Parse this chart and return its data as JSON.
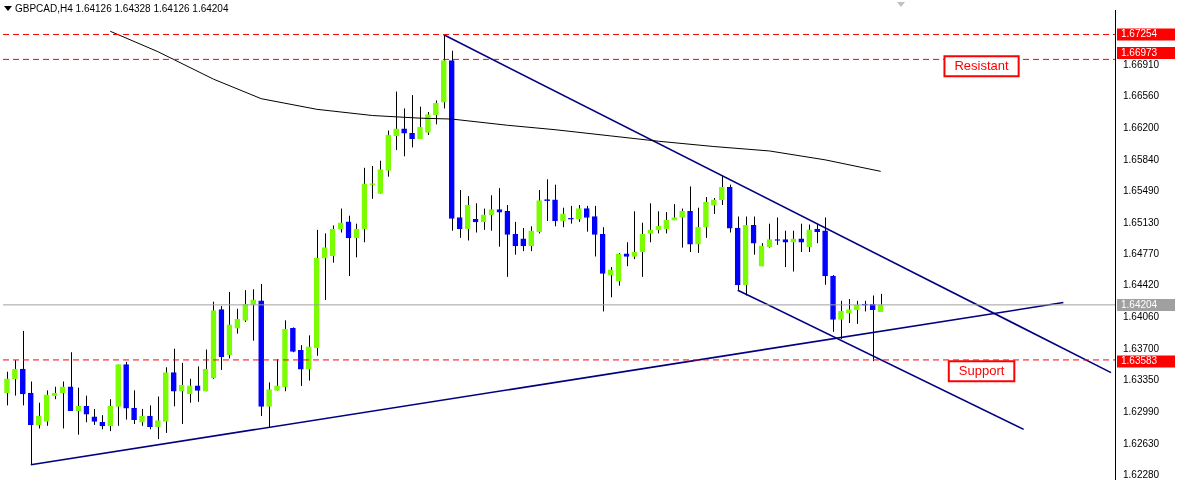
{
  "chart_data": {
    "type": "candlestick",
    "title": "GBPCAD,H4  1.64126 1.64328 1.64126 1.64204",
    "categories": [
      null,
      null,
      null,
      null,
      null,
      null,
      null,
      null,
      null,
      null,
      null,
      null,
      null,
      null,
      null,
      null,
      null,
      null,
      null,
      null,
      null,
      null,
      null,
      null,
      null,
      null,
      null,
      null,
      null,
      null,
      null,
      null,
      null,
      null,
      null,
      null,
      null,
      null,
      null,
      null,
      null,
      null,
      null,
      null,
      null,
      null,
      null,
      null,
      null,
      null,
      null,
      null,
      null,
      null,
      null,
      null,
      null,
      null,
      null,
      null,
      null,
      null,
      null,
      null,
      null,
      null,
      null,
      null,
      null,
      null,
      null,
      null,
      null,
      null,
      null,
      null,
      null,
      null,
      null,
      null,
      null,
      null,
      null,
      null,
      null,
      null,
      null,
      null,
      null,
      null,
      null,
      null,
      null,
      null,
      null,
      null,
      null,
      null,
      null,
      null,
      null,
      null,
      null,
      null,
      null,
      null,
      null,
      null,
      null,
      null,
      null,
      null,
      null,
      null,
      null,
      null,
      null,
      null,
      null,
      null,
      null,
      null,
      null,
      null,
      null,
      null,
      null,
      null,
      null,
      null,
      null,
      null,
      null,
      null,
      null,
      null,
      null,
      null,
      null,
      null
    ],
    "ohlc": [
      [
        1.6321,
        1.6345,
        1.6307,
        1.6337
      ],
      [
        1.6337,
        1.6358,
        1.6318,
        1.6348
      ],
      [
        1.6348,
        1.6391,
        1.6307,
        1.632
      ],
      [
        1.6321,
        1.6334,
        1.624,
        1.6285
      ],
      [
        1.6285,
        1.631,
        1.6281,
        1.6295
      ],
      [
        1.6289,
        1.6324,
        1.6284,
        1.6319
      ],
      [
        1.6318,
        1.6328,
        1.6314,
        1.6321
      ],
      [
        1.6321,
        1.6334,
        1.6281,
        1.6328
      ],
      [
        1.6328,
        1.6367,
        1.6301,
        1.6301
      ],
      [
        1.6301,
        1.6327,
        1.6274,
        1.6306
      ],
      [
        1.6306,
        1.6318,
        1.6288,
        1.6297
      ],
      [
        1.6294,
        1.6303,
        1.6285,
        1.6289
      ],
      [
        1.6288,
        1.6296,
        1.628,
        1.6284
      ],
      [
        1.6284,
        1.6314,
        1.6278,
        1.6306
      ],
      [
        1.6306,
        1.6353,
        1.6284,
        1.6353
      ],
      [
        1.6353,
        1.6356,
        1.6291,
        1.6304
      ],
      [
        1.6304,
        1.6324,
        1.6286,
        1.6291
      ],
      [
        1.6288,
        1.6303,
        1.6284,
        1.6295
      ],
      [
        1.6295,
        1.6307,
        1.628,
        1.6283
      ],
      [
        1.6283,
        1.6317,
        1.6269,
        1.629
      ],
      [
        1.6289,
        1.635,
        1.6276,
        1.6344
      ],
      [
        1.6344,
        1.6371,
        1.6306,
        1.6323
      ],
      [
        1.6323,
        1.6355,
        1.6286,
        1.633
      ],
      [
        1.632,
        1.6337,
        1.631,
        1.6329
      ],
      [
        1.6329,
        1.6351,
        1.6311,
        1.6324
      ],
      [
        1.6323,
        1.637,
        1.6323,
        1.6348
      ],
      [
        1.6338,
        1.6424,
        1.6337,
        1.6414
      ],
      [
        1.6415,
        1.6419,
        1.6347,
        1.6362
      ],
      [
        1.6364,
        1.6435,
        1.636,
        1.6398
      ],
      [
        1.6394,
        1.6416,
        1.6388,
        1.6404
      ],
      [
        1.6403,
        1.6437,
        1.6401,
        1.6421
      ],
      [
        1.6421,
        1.6438,
        1.638,
        1.6426
      ],
      [
        1.6425,
        1.6444,
        1.6295,
        1.6306
      ],
      [
        1.6306,
        1.6333,
        1.6282,
        1.6325
      ],
      [
        1.6324,
        1.6359,
        1.6324,
        1.6329
      ],
      [
        1.6328,
        1.6403,
        1.6323,
        1.6393
      ],
      [
        1.6394,
        1.6395,
        1.6367,
        1.6368
      ],
      [
        1.6369,
        1.6375,
        1.6329,
        1.6348
      ],
      [
        1.6348,
        1.6386,
        1.6335,
        1.6373
      ],
      [
        1.6372,
        1.6505,
        1.6363,
        1.6473
      ],
      [
        1.6473,
        1.6501,
        1.6426,
        1.6485
      ],
      [
        1.6476,
        1.651,
        1.6468,
        1.6506
      ],
      [
        1.6506,
        1.6529,
        1.6502,
        1.6513
      ],
      [
        1.6514,
        1.6521,
        1.6453,
        1.6496
      ],
      [
        1.6496,
        1.6512,
        1.6474,
        1.6506
      ],
      [
        1.6506,
        1.6575,
        1.6491,
        1.6557
      ],
      [
        1.6556,
        1.6577,
        1.654,
        1.6557
      ],
      [
        1.6546,
        1.6583,
        1.6546,
        1.6573
      ],
      [
        1.6572,
        1.6617,
        1.6565,
        1.6612
      ],
      [
        1.6611,
        1.6661,
        1.6595,
        1.6619
      ],
      [
        1.6619,
        1.6642,
        1.6588,
        1.6614
      ],
      [
        1.6614,
        1.6657,
        1.6598,
        1.6608
      ],
      [
        1.6608,
        1.6644,
        1.6608,
        1.6621
      ],
      [
        1.6615,
        1.6638,
        1.6612,
        1.6635
      ],
      [
        1.6635,
        1.6651,
        1.6624,
        1.6648
      ],
      [
        1.6649,
        1.6725,
        1.6642,
        1.6696
      ],
      [
        1.6696,
        1.6707,
        1.6504,
        1.6518
      ],
      [
        1.6519,
        1.655,
        1.6496,
        1.6506
      ],
      [
        1.6506,
        1.6543,
        1.6493,
        1.6533
      ],
      [
        1.6517,
        1.6535,
        1.6502,
        1.6514
      ],
      [
        1.6514,
        1.6529,
        1.6505,
        1.6522
      ],
      [
        1.6522,
        1.6544,
        1.6504,
        1.6528
      ],
      [
        1.6528,
        1.6552,
        1.6486,
        1.6525
      ],
      [
        1.6526,
        1.6533,
        1.6452,
        1.65
      ],
      [
        1.65,
        1.6514,
        1.6477,
        1.6487
      ],
      [
        1.6495,
        1.6507,
        1.6481,
        1.6487
      ],
      [
        1.6487,
        1.6509,
        1.6481,
        1.6504
      ],
      [
        1.6503,
        1.655,
        1.6501,
        1.6538
      ],
      [
        1.6538,
        1.6562,
        1.6515,
        1.6538
      ],
      [
        1.6539,
        1.6556,
        1.6509,
        1.6515
      ],
      [
        1.6515,
        1.653,
        1.6508,
        1.6523
      ],
      [
        1.6518,
        1.6532,
        1.6512,
        1.6517
      ],
      [
        1.6517,
        1.6533,
        1.6514,
        1.6529
      ],
      [
        1.6529,
        1.6532,
        1.6503,
        1.6519
      ],
      [
        1.652,
        1.6532,
        1.6475,
        1.65
      ],
      [
        1.65,
        1.6508,
        1.6413,
        1.6456
      ],
      [
        1.6454,
        1.6463,
        1.6429,
        1.646
      ],
      [
        1.6447,
        1.6479,
        1.6442,
        1.6478
      ],
      [
        1.6478,
        1.6491,
        1.6464,
        1.6475
      ],
      [
        1.6475,
        1.6526,
        1.6472,
        1.648
      ],
      [
        1.648,
        1.6513,
        1.6452,
        1.65
      ],
      [
        1.6501,
        1.6535,
        1.6491,
        1.6505
      ],
      [
        1.6505,
        1.6526,
        1.6501,
        1.6509
      ],
      [
        1.6506,
        1.6525,
        1.6501,
        1.6516
      ],
      [
        1.6516,
        1.6534,
        1.6516,
        1.6519
      ],
      [
        1.6519,
        1.6529,
        1.6485,
        1.6526
      ],
      [
        1.6526,
        1.6554,
        1.648,
        1.6489
      ],
      [
        1.6489,
        1.653,
        1.6479,
        1.6508
      ],
      [
        1.6508,
        1.6542,
        1.6496,
        1.6536
      ],
      [
        1.6533,
        1.6541,
        1.6523,
        1.6539
      ],
      [
        1.6539,
        1.6566,
        1.6533,
        1.6553
      ],
      [
        1.6553,
        1.6556,
        1.6502,
        1.6507
      ],
      [
        1.6507,
        1.652,
        1.6436,
        1.6443
      ],
      [
        1.6443,
        1.652,
        1.6431,
        1.651
      ],
      [
        1.651,
        1.652,
        1.6477,
        1.649
      ],
      [
        1.6464,
        1.649,
        1.6464,
        1.6487
      ],
      [
        1.6486,
        1.6512,
        1.6485,
        1.6494
      ],
      [
        1.6493,
        1.6519,
        1.6488,
        1.6493
      ],
      [
        1.6494,
        1.6504,
        1.6463,
        1.6491
      ],
      [
        1.6491,
        1.6504,
        1.6458,
        1.6495
      ],
      [
        1.6495,
        1.6512,
        1.648,
        1.6491
      ],
      [
        1.6486,
        1.6511,
        1.648,
        1.6505
      ],
      [
        1.6506,
        1.6512,
        1.649,
        1.6503
      ],
      [
        1.6504,
        1.6519,
        1.6443,
        1.6453
      ],
      [
        1.6453,
        1.6454,
        1.639,
        1.6404
      ],
      [
        1.6404,
        1.6425,
        1.6382,
        1.6413
      ],
      [
        1.6411,
        1.6427,
        1.64,
        1.6415
      ],
      [
        1.6415,
        1.6425,
        1.6399,
        1.642
      ],
      [
        1.642,
        1.6425,
        1.6413,
        1.642
      ],
      [
        1.6421,
        1.6431,
        1.6357,
        1.6415
      ],
      [
        1.64126,
        1.64328,
        1.64126,
        1.64204
      ],
      null,
      null,
      null,
      null,
      null,
      null,
      null,
      null,
      null,
      null,
      null,
      null,
      null,
      null,
      null,
      null,
      null,
      null,
      null,
      null,
      null,
      null,
      null,
      null,
      null,
      null,
      null,
      null,
      null
    ],
    "colors": [
      "#7cfc00",
      "#7cfc00",
      "#0000ff",
      "#0000ff",
      "#7cfc00",
      "#7cfc00",
      "#7cfc00",
      "#7cfc00",
      "#0000ff",
      "#7cfc00",
      "#0000ff",
      "#0000ff",
      "#0000ff",
      "#7cfc00",
      "#7cfc00",
      "#0000ff",
      "#0000ff",
      "#7cfc00",
      "#0000ff",
      "#7cfc00",
      "#7cfc00",
      "#0000ff",
      "#7cfc00",
      "#7cfc00",
      "#0000ff",
      "#7cfc00",
      "#7cfc00",
      "#0000ff",
      "#7cfc00",
      "#7cfc00",
      "#7cfc00",
      "#7cfc00",
      "#0000ff",
      "#7cfc00",
      "#7cfc00",
      "#7cfc00",
      "#0000ff",
      "#0000ff",
      "#7cfc00",
      "#7cfc00",
      "#7cfc00",
      "#7cfc00",
      "#7cfc00",
      "#0000ff",
      "#7cfc00",
      "#7cfc00",
      "#7cfc00",
      "#7cfc00",
      "#7cfc00",
      "#7cfc00",
      "#0000ff",
      "#0000ff",
      "#7cfc00",
      "#7cfc00",
      "#7cfc00",
      "#7cfc00",
      "#0000ff",
      "#0000ff",
      "#7cfc00",
      "#0000ff",
      "#7cfc00",
      "#7cfc00",
      "#0000ff",
      "#0000ff",
      "#0000ff",
      "#0000ff",
      "#7cfc00",
      "#7cfc00",
      "#0000ff",
      "#0000ff",
      "#7cfc00",
      "#0000ff",
      "#7cfc00",
      "#0000ff",
      "#0000ff",
      "#0000ff",
      "#7cfc00",
      "#7cfc00",
      "#0000ff",
      "#7cfc00",
      "#7cfc00",
      "#7cfc00",
      "#7cfc00",
      "#7cfc00",
      "#7cfc00",
      "#7cfc00",
      "#0000ff",
      "#7cfc00",
      "#7cfc00",
      "#7cfc00",
      "#7cfc00",
      "#0000ff",
      "#0000ff",
      "#7cfc00",
      "#0000ff",
      "#7cfc00",
      "#7cfc00",
      "#0000ff",
      "#0000ff",
      "#7cfc00",
      "#0000ff",
      "#7cfc00",
      "#0000ff",
      "#0000ff",
      "#0000ff",
      "#7cfc00",
      "#7cfc00",
      "#7cfc00",
      "#0000ff",
      "#0000ff",
      "#7cfc00",
      null,
      null,
      null,
      null,
      null,
      null,
      null,
      null,
      null,
      null,
      null,
      null,
      null,
      null,
      null,
      null,
      null,
      null,
      null,
      null,
      null,
      null,
      null,
      null,
      null,
      null,
      null,
      null,
      null
    ],
    "series": [
      {
        "type": "line",
        "color": "#000000",
        "values": [
          null,
          null,
          null,
          null,
          null,
          null,
          null,
          null,
          null,
          null,
          null,
          null,
          null,
          1.6729,
          null,
          null,
          null,
          null,
          null,
          1.6706,
          null,
          null,
          null,
          null,
          null,
          null,
          1.6675,
          null,
          null,
          null,
          null,
          null,
          1.6653,
          null,
          null,
          null,
          null,
          null,
          null,
          1.6641,
          null,
          null,
          null,
          null,
          null,
          null,
          1.6634,
          null,
          null,
          null,
          null,
          null,
          1.6631,
          null,
          null,
          null,
          1.663,
          null,
          null,
          null,
          null,
          null,
          null,
          1.6623,
          null,
          null,
          null,
          null,
          null,
          1.6618,
          null,
          null,
          null,
          null,
          null,
          null,
          1.6611,
          null,
          null,
          null,
          null,
          null,
          1.6605,
          null,
          null,
          null,
          null,
          null,
          null,
          1.6599,
          null,
          null,
          null,
          null,
          null,
          null,
          1.6594,
          null,
          null,
          null,
          null,
          null,
          null,
          1.6584,
          null,
          null,
          null,
          null,
          null,
          null,
          1.6571,
          null,
          null,
          null,
          null,
          null,
          null,
          null,
          null,
          null,
          null,
          null,
          null,
          null,
          null,
          null,
          null,
          null,
          null,
          null,
          null,
          null,
          null,
          null,
          null,
          null,
          null,
          null,
          null,
          null
        ]
      },
      {
        "type": "line",
        "color": "#000080",
        "values": [
          null,
          null,
          null,
          1.624,
          null,
          null,
          null,
          null,
          null,
          null,
          null,
          null,
          null,
          null,
          null,
          null,
          null,
          null,
          null,
          null,
          null,
          null,
          null,
          null,
          null,
          null,
          null,
          null,
          null,
          null,
          null,
          null,
          null,
          null,
          null,
          null,
          null,
          null,
          null,
          null,
          null,
          null,
          null,
          null,
          null,
          null,
          null,
          null,
          null,
          null,
          null,
          null,
          null,
          null,
          null,
          null,
          null,
          null,
          null,
          null,
          null,
          null,
          null,
          null,
          null,
          null,
          null,
          null,
          null,
          null,
          null,
          null,
          null,
          null,
          null,
          null,
          null,
          null,
          null,
          null,
          null,
          null,
          null,
          null,
          null,
          null,
          null,
          null,
          null,
          null,
          null,
          null,
          null,
          null,
          null,
          null,
          null,
          null,
          null,
          null,
          null,
          null,
          null,
          null,
          null,
          null,
          null,
          null,
          null,
          null,
          null,
          null,
          null,
          null,
          null,
          null,
          null,
          null,
          null,
          null,
          null,
          null,
          null,
          null,
          null,
          null,
          null,
          null,
          null,
          null,
          null,
          null,
          null,
          1.6423,
          null,
          null,
          null,
          null,
          null,
          null
        ]
      },
      {
        "type": "line",
        "color": "#000080",
        "values": [
          null,
          null,
          null,
          null,
          null,
          null,
          null,
          null,
          null,
          null,
          null,
          null,
          null,
          null,
          null,
          null,
          null,
          null,
          null,
          null,
          null,
          null,
          null,
          null,
          null,
          null,
          null,
          null,
          null,
          null,
          null,
          null,
          null,
          null,
          null,
          null,
          null,
          null,
          null,
          null,
          null,
          null,
          null,
          null,
          null,
          null,
          null,
          null,
          null,
          null,
          null,
          null,
          null,
          null,
          null,
          1.6725,
          null,
          null,
          null,
          null,
          null,
          null,
          null,
          null,
          null,
          null,
          null,
          null,
          null,
          null,
          null,
          null,
          null,
          null,
          null,
          null,
          null,
          null,
          null,
          null,
          null,
          null,
          null,
          null,
          null,
          null,
          null,
          null,
          null,
          null,
          null,
          null,
          null,
          null,
          null,
          null,
          null,
          null,
          null,
          null,
          null,
          null,
          null,
          null,
          null,
          null,
          null,
          null,
          null,
          null,
          null,
          null,
          null,
          null,
          null,
          null,
          null,
          null,
          null,
          null,
          null,
          null,
          null,
          null,
          null,
          null,
          null,
          null,
          null,
          null,
          null,
          null,
          null,
          null,
          null,
          null,
          null,
          null,
          null,
          1.6344
        ]
      },
      {
        "type": "line",
        "color": "#000080",
        "values": [
          null,
          null,
          null,
          null,
          null,
          null,
          null,
          null,
          null,
          null,
          null,
          null,
          null,
          null,
          null,
          null,
          null,
          null,
          null,
          null,
          null,
          null,
          null,
          null,
          null,
          null,
          null,
          null,
          null,
          null,
          null,
          null,
          null,
          null,
          null,
          null,
          null,
          null,
          null,
          null,
          null,
          null,
          null,
          null,
          null,
          null,
          null,
          null,
          null,
          null,
          null,
          null,
          null,
          null,
          null,
          null,
          null,
          null,
          null,
          null,
          null,
          null,
          null,
          null,
          null,
          null,
          null,
          null,
          null,
          null,
          null,
          null,
          null,
          null,
          null,
          null,
          null,
          null,
          null,
          null,
          null,
          null,
          null,
          null,
          null,
          null,
          null,
          null,
          null,
          null,
          null,
          null,
          1.6437,
          null,
          null,
          null,
          null,
          null,
          null,
          null,
          null,
          null,
          null,
          null,
          null,
          null,
          null,
          null,
          null,
          null,
          null,
          null,
          null,
          null,
          null,
          null,
          null,
          null,
          null,
          null,
          null,
          null,
          null,
          null,
          null,
          null,
          null,
          null,
          1.628,
          null,
          null,
          null,
          null,
          null,
          null,
          null,
          null,
          null,
          null,
          null
        ]
      }
    ],
    "ylim": [
      1.6224,
      1.6753
    ],
    "yticks": [
      {
        "value": 1.6691,
        "label": "1.66910"
      },
      {
        "value": 1.6656,
        "label": "1.66560"
      },
      {
        "value": 1.662,
        "label": "1.66200"
      },
      {
        "value": 1.6584,
        "label": "1.65840"
      },
      {
        "value": 1.6549,
        "label": "1.65490"
      },
      {
        "value": 1.6513,
        "label": "1.65130"
      },
      {
        "value": 1.6477,
        "label": "1.64770"
      },
      {
        "value": 1.6442,
        "label": "1.64420"
      },
      {
        "value": 1.6406,
        "label": "1.64060"
      },
      {
        "value": 1.637,
        "label": "1.63700"
      },
      {
        "value": 1.6335,
        "label": "1.63350"
      },
      {
        "value": 1.6299,
        "label": "1.62990"
      },
      {
        "value": 1.6263,
        "label": "1.62630"
      },
      {
        "value": 1.6228,
        "label": "1.62280"
      }
    ],
    "ref_lines": [
      {
        "axis": "y",
        "value": 1.67254,
        "label": "1.67254",
        "color": "#ff0000",
        "line_style": "dashed"
      },
      {
        "axis": "y",
        "value": 1.66973,
        "label": "1.66973",
        "color": "#ff0000",
        "line_style": "dashed"
      },
      {
        "axis": "y",
        "value": 1.64204,
        "label": "1.64204",
        "color": "#a0a0a0",
        "line_style": "solid"
      },
      {
        "axis": "y",
        "value": 1.63583,
        "label": "1.63583",
        "color": "#ff0000",
        "line_style": "dashed"
      }
    ],
    "annotations": [
      "Resistant",
      "Support"
    ],
    "tick_labels": "y",
    "marker": "none",
    "line_style": "solid"
  }
}
